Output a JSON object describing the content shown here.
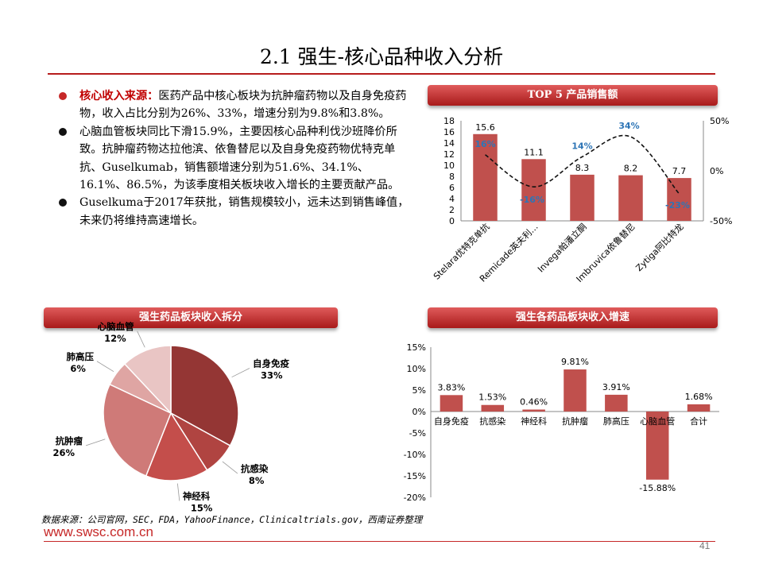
{
  "page": {
    "title": "2.1 强生-核心品种收入分析",
    "source": "数据来源：公司官网，SEC，FDA，YahooFinance，Clinicaltrials.gov，西南证券整理",
    "site": "www.swsc.com.cn",
    "page_number": "41"
  },
  "bullets": [
    {
      "highlight": "核心收入来源：",
      "text": "医药产品中核心板块为抗肿瘤药物以及自身免疫药物，收入占比分别为26%、33%，增速分别为9.8%和3.8%。"
    },
    {
      "highlight": "",
      "text": "心脑血管板块同比下滑15.9%，主要因核心品种利伐沙班降价所致。抗肿瘤药物达拉他滨、依鲁替尼以及自身免疫药物优特克单抗、Guselkumab，销售额增速分别为51.6%、34.1%、16.1%、86.5%，为该季度相关板块收入增长的主要贡献产品。"
    },
    {
      "highlight": "",
      "text": "Guselkuma于2017年获批，销售规模较小，远未达到销售峰值，未来仍将维持高速增长。"
    }
  ],
  "colors": {
    "accent": "#c0504d",
    "dark_red": "#9b2d2b",
    "title_line": "#b71c1c"
  },
  "chart_data": [
    {
      "type": "bar",
      "title": "TOP 5 产品销售额",
      "categories": [
        "Stelara优特克单抗",
        "Remicade英夫利…",
        "Invega帕潘立酮",
        "Imbruvica依鲁替尼",
        "Zytiga阿比特龙"
      ],
      "series": [
        {
          "values": [
            15.6,
            11.1,
            8.3,
            8.2,
            7.7
          ],
          "axis": "left"
        },
        {
          "values": [
            16,
            -16,
            14,
            34,
            -23
          ],
          "axis": "right",
          "line": "dashed-smooth"
        }
      ],
      "ylim": [
        0,
        18
      ],
      "yticks": [
        "18",
        "16",
        "14",
        "12",
        "10",
        "8",
        "6",
        "4",
        "2",
        "0"
      ],
      "y2lim": [
        -50,
        50
      ],
      "y2ticks": [
        "50%",
        "0%",
        "-50%"
      ],
      "value_labels": [
        "15.6",
        "11.1",
        "8.3",
        "8.2",
        "7.7"
      ],
      "growth_labels": [
        "16%",
        "-16%",
        "14%",
        "34%",
        "-23%"
      ],
      "bar_color": "#c0504d",
      "line_label_color": "#2e75b6"
    },
    {
      "type": "pie",
      "title": "强生药品板块收入拆分",
      "slices": [
        {
          "name": "自身免疫",
          "value": 33,
          "label": "33%",
          "color": "#943634"
        },
        {
          "name": "抗感染",
          "value": 8,
          "label": "8%",
          "color": "#b04441"
        },
        {
          "name": "神经科",
          "value": 15,
          "label": "15%",
          "color": "#c44e4b"
        },
        {
          "name": "抗肿瘤",
          "value": 26,
          "label": "26%",
          "color": "#cf7a78"
        },
        {
          "name": "肺高压",
          "value": 6,
          "label": "6%",
          "color": "#dfa5a3"
        },
        {
          "name": "心脑血管",
          "value": 12,
          "label": "12%",
          "color": "#e9c5c4"
        }
      ]
    },
    {
      "type": "bar",
      "title": "强生各药品板块收入增速",
      "categories": [
        "自身免疫",
        "抗感染",
        "神经科",
        "抗肿瘤",
        "肺高压",
        "心脑血管",
        "合计"
      ],
      "values": [
        3.83,
        1.53,
        0.46,
        9.81,
        3.91,
        -15.88,
        1.68
      ],
      "value_labels": [
        "3.83%",
        "1.53%",
        "0.46%",
        "9.81%",
        "3.91%",
        "-15.88%",
        "1.68%"
      ],
      "ylim": [
        -20,
        15
      ],
      "yticks": [
        "15%",
        "10%",
        "5%",
        "0%",
        "-5%",
        "-10%",
        "-15%",
        "-20%"
      ],
      "bar_color": "#c0504d"
    }
  ]
}
